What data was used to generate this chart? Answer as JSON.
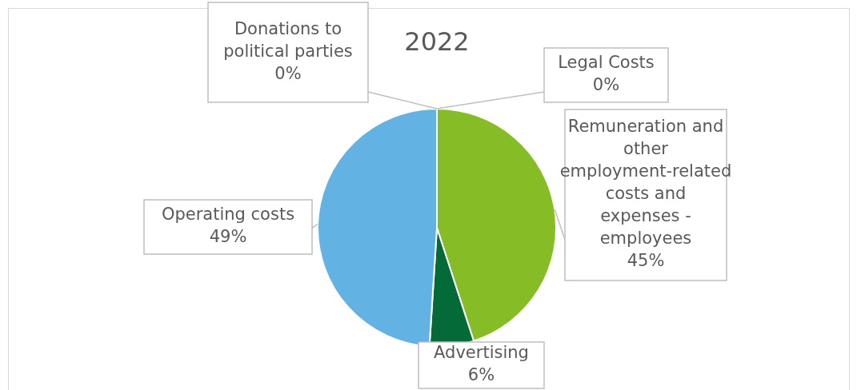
{
  "chart_data": {
    "type": "pie",
    "title": "2022",
    "categories": [
      "Legal Costs",
      "Remuneration and other employment-related costs and expenses - employees",
      "Advertising",
      "Operating costs",
      "Donations to political parties"
    ],
    "values": [
      0,
      45,
      6,
      49,
      0
    ],
    "value_labels": [
      "0%",
      "45%",
      "6%",
      "49%",
      "0%"
    ],
    "colors": [
      "#a0dcff",
      "#86bc25",
      "#046a38",
      "#62b3e4",
      "#43b02a"
    ],
    "legend": false
  }
}
